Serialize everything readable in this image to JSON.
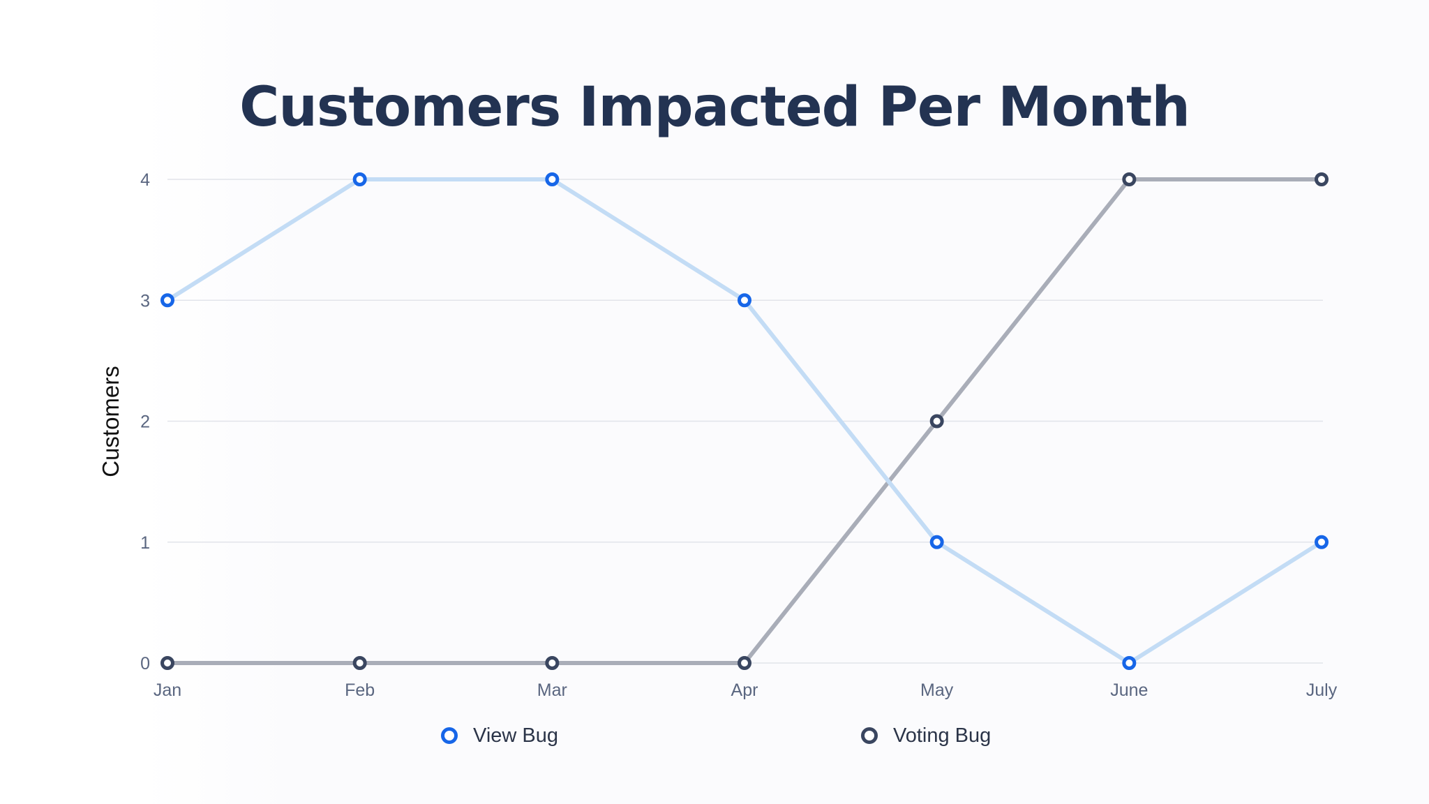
{
  "chart_data": {
    "type": "line",
    "title": "Customers Impacted Per Month",
    "xlabel": "",
    "ylabel": "Customers",
    "categories": [
      "Jan",
      "Feb",
      "Mar",
      "Apr",
      "May",
      "June",
      "July"
    ],
    "yticks": [
      0,
      1,
      2,
      3,
      4
    ],
    "ylim": [
      0,
      4
    ],
    "grid": true,
    "legend_position": "bottom",
    "series": [
      {
        "name": "View Bug",
        "values": [
          3,
          4,
          4,
          3,
          1,
          0,
          1
        ],
        "line_color": "#c3dcf5",
        "marker_color": "#1766e8"
      },
      {
        "name": "Voting Bug",
        "values": [
          0,
          0,
          0,
          0,
          2,
          4,
          4
        ],
        "line_color": "#a9adb8",
        "marker_color": "#3a4660"
      }
    ]
  }
}
